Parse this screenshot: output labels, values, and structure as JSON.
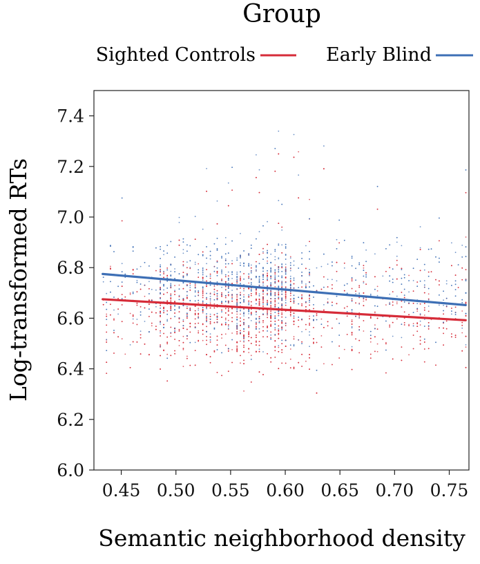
{
  "chart_data": {
    "type": "scatter",
    "title": "",
    "xlabel": "Semantic neighborhood density",
    "ylabel": "Log-transformed RTs",
    "xlim": [
      0.425,
      0.768
    ],
    "ylim": [
      6.0,
      7.5
    ],
    "xticks": [
      0.45,
      0.5,
      0.55,
      0.6,
      0.65,
      0.7,
      0.75
    ],
    "xtick_labels": [
      "0.45",
      "0.50",
      "0.55",
      "0.60",
      "0.65",
      "0.70",
      "0.75"
    ],
    "yticks": [
      6.0,
      6.2,
      6.4,
      6.6,
      6.8,
      7.0,
      7.2,
      7.4
    ],
    "ytick_labels": [
      "6.0",
      "6.2",
      "6.4",
      "6.6",
      "6.8",
      "7.0",
      "7.2",
      "7.4"
    ],
    "grid": false,
    "legend": {
      "title": "Group",
      "placement": "top",
      "entries": [
        "Sighted Controls",
        "Early Blind"
      ]
    },
    "series": [
      {
        "name": "Sighted Controls",
        "color": "#d62b38",
        "center": 6.63,
        "fit_line": {
          "x": [
            0.433,
            0.765
          ],
          "y": [
            6.675,
            6.592
          ]
        }
      },
      {
        "name": "Early Blind",
        "color": "#3d6fb5",
        "center": 6.72,
        "fit_line": {
          "x": [
            0.433,
            0.765
          ],
          "y": [
            6.775,
            6.652
          ]
        }
      }
    ]
  }
}
